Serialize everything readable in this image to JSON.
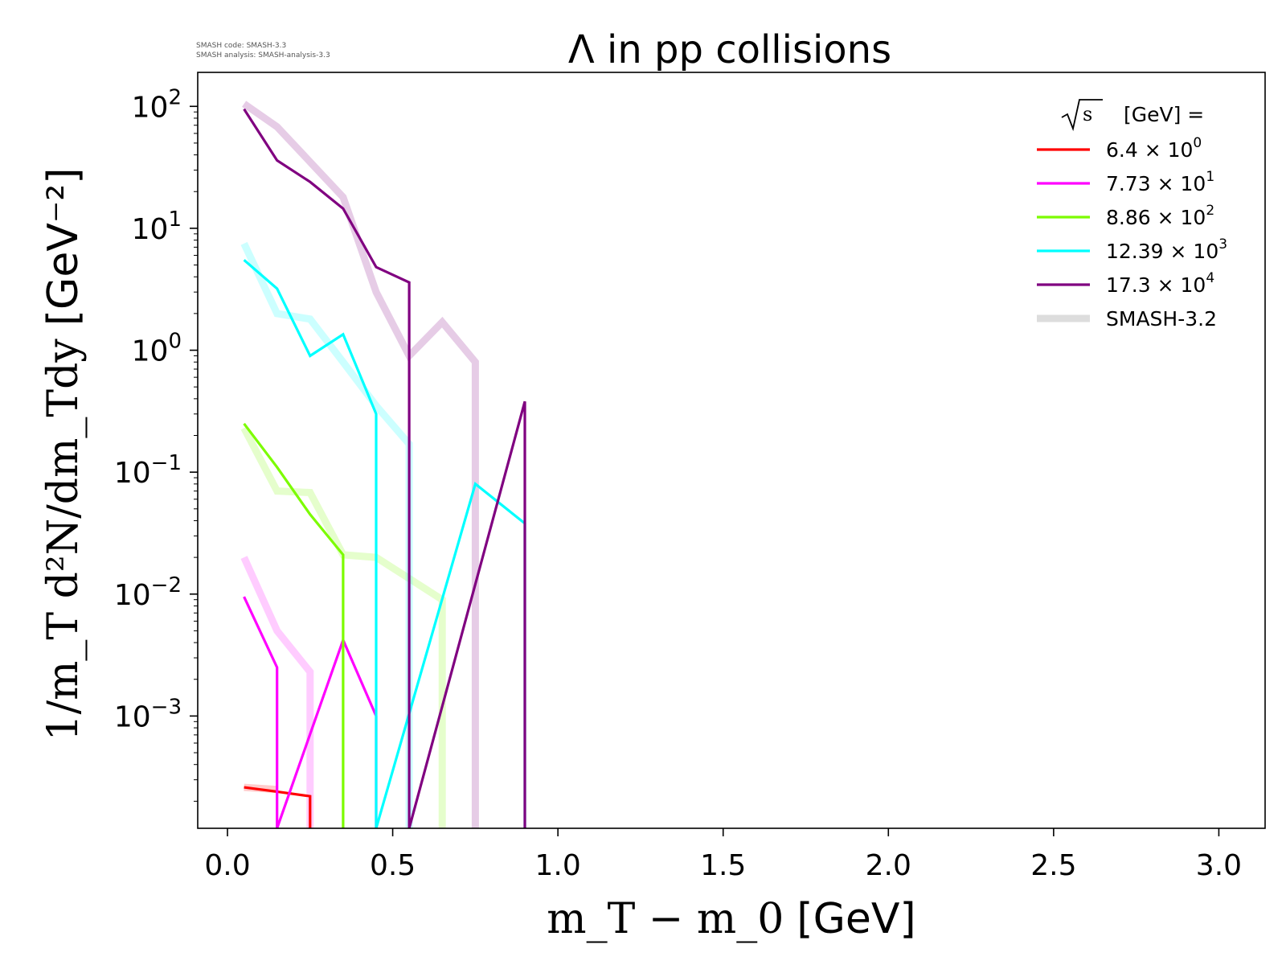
{
  "chart_data": {
    "type": "line",
    "title": "Λ in pp collisions",
    "xlabel": "m_T − m_0",
    "xlabel_unit": "[GeV]",
    "ylabel": "1/m_T d²N/dm_Tdy",
    "ylabel_unit": "[GeV⁻²]",
    "x_scale": "linear",
    "y_scale": "log",
    "xlim": [
      -0.09,
      3.14
    ],
    "ylim": [
      0.00012,
      190
    ],
    "xticks": [
      0.0,
      0.5,
      1.0,
      1.5,
      2.0,
      2.5,
      3.0
    ],
    "xtick_labels": [
      "0.0",
      "0.5",
      "1.0",
      "1.5",
      "2.0",
      "2.5",
      "3.0"
    ],
    "yticks": [
      {
        "value": 100,
        "base": "10",
        "exp": "2"
      },
      {
        "value": 10,
        "base": "10",
        "exp": "1"
      },
      {
        "value": 1,
        "base": "10",
        "exp": "0"
      },
      {
        "value": 0.1,
        "base": "10",
        "exp": "−1"
      },
      {
        "value": 0.01,
        "base": "10",
        "exp": "−2"
      },
      {
        "value": 0.001,
        "base": "10",
        "exp": "−3"
      }
    ],
    "annotations": [
      "SMASH code:      SMASH-3.3",
      "SMASH analysis: SMASH-analysis-3.3"
    ],
    "legend": {
      "placement": "top-right",
      "title": "[GeV] =",
      "title_sqrt": "s",
      "entries": [
        {
          "mantissa": "6.4",
          "times": "×",
          "base": "10",
          "exp": "0",
          "color": "#ff0000"
        },
        {
          "mantissa": "7.73",
          "times": "×",
          "base": "10",
          "exp": "1",
          "color": "#ff00ff"
        },
        {
          "mantissa": "8.86",
          "times": "×",
          "base": "10",
          "exp": "2",
          "color": "#7cfc00"
        },
        {
          "mantissa": "12.39",
          "times": "×",
          "base": "10",
          "exp": "3",
          "color": "#00ffff"
        },
        {
          "mantissa": "17.3",
          "times": "×",
          "base": "10",
          "exp": "4",
          "color": "#800080"
        },
        {
          "label": "SMASH-3.2",
          "color": "#dddddd",
          "reference": true
        }
      ]
    },
    "series": [
      {
        "energy": "6.4",
        "color": "#ff0000",
        "current": [
          [
            0.05,
            0.00026
          ],
          [
            0.15,
            0.00024
          ],
          [
            0.25,
            0.00022
          ],
          [
            0.25,
            0.00012
          ]
        ],
        "reference": [
          [
            0.05,
            0.00026
          ],
          [
            0.15,
            0.00025
          ]
        ]
      },
      {
        "energy": "7.73",
        "color": "#ff00ff",
        "current": [
          [
            0.05,
            0.0095
          ],
          [
            0.15,
            0.0025
          ],
          [
            0.15,
            0.00012
          ],
          [
            0.35,
            0.0042
          ],
          [
            0.45,
            0.001
          ],
          [
            0.45,
            0.00012
          ]
        ],
        "reference": [
          [
            0.05,
            0.02
          ],
          [
            0.15,
            0.005
          ],
          [
            0.25,
            0.0023
          ],
          [
            0.25,
            0.00012
          ]
        ]
      },
      {
        "energy": "8.86",
        "color": "#7cfc00",
        "current": [
          [
            0.05,
            0.25
          ],
          [
            0.15,
            0.11
          ],
          [
            0.25,
            0.045
          ],
          [
            0.35,
            0.021
          ],
          [
            0.35,
            0.00012
          ]
        ],
        "reference": [
          [
            0.05,
            0.23
          ],
          [
            0.15,
            0.07
          ],
          [
            0.25,
            0.068
          ],
          [
            0.35,
            0.021
          ],
          [
            0.45,
            0.02
          ],
          [
            0.65,
            0.009
          ],
          [
            0.65,
            0.00012
          ]
        ]
      },
      {
        "energy": "12.39",
        "color": "#00ffff",
        "current": [
          [
            0.05,
            5.5
          ],
          [
            0.15,
            3.2
          ],
          [
            0.25,
            0.9
          ],
          [
            0.35,
            1.35
          ],
          [
            0.45,
            0.3
          ],
          [
            0.45,
            0.00012
          ],
          [
            0.75,
            0.08
          ],
          [
            0.9,
            0.038
          ],
          [
            0.9,
            0.00012
          ]
        ],
        "reference": [
          [
            0.05,
            7.5
          ],
          [
            0.15,
            2.0
          ],
          [
            0.25,
            1.8
          ],
          [
            0.35,
            0.8
          ],
          [
            0.45,
            0.35
          ],
          [
            0.55,
            0.17
          ],
          [
            0.55,
            0.00012
          ]
        ]
      },
      {
        "energy": "17.3",
        "color": "#800080",
        "current": [
          [
            0.05,
            95
          ],
          [
            0.15,
            36
          ],
          [
            0.25,
            24
          ],
          [
            0.35,
            14.5
          ],
          [
            0.45,
            4.8
          ],
          [
            0.55,
            3.6
          ],
          [
            0.55,
            0.00012
          ],
          [
            0.9,
            0.38
          ],
          [
            0.9,
            0.00012
          ]
        ],
        "reference": [
          [
            0.05,
            105
          ],
          [
            0.15,
            68
          ],
          [
            0.25,
            35
          ],
          [
            0.35,
            18
          ],
          [
            0.45,
            3.0
          ],
          [
            0.55,
            0.9
          ],
          [
            0.65,
            1.7
          ],
          [
            0.75,
            0.8
          ],
          [
            0.75,
            0.00012
          ]
        ]
      }
    ]
  }
}
